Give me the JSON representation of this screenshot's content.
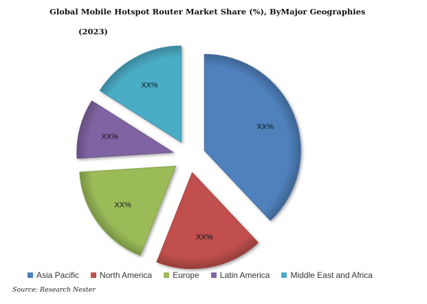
{
  "chart_data": {
    "type": "pie",
    "title": "Global Mobile Hotspot Router Market Share (%), ByMajor Geographies",
    "subtitle": "(2023)",
    "source": "Source: Research Nester",
    "legend_position": "bottom",
    "categories": [
      "Asia Pacific",
      "North America",
      "Europe",
      "Latin America",
      "Middle East and Africa"
    ],
    "values": [
      38,
      18,
      18,
      10,
      16
    ],
    "labels": [
      "XX%",
      "XX%",
      "XX%",
      "XX%",
      "XX%"
    ],
    "colors": [
      "#4f81bd",
      "#c0504d",
      "#9bbb59",
      "#8064a2",
      "#4bacc6"
    ],
    "exploded": true,
    "style": "3d-beveled"
  }
}
